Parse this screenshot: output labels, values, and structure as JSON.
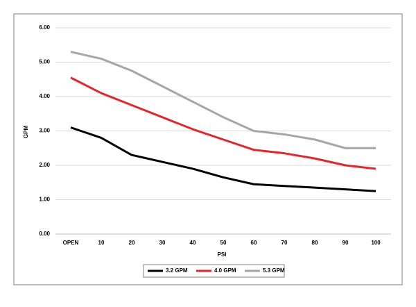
{
  "chart_data": {
    "type": "line",
    "x_label": "PSI",
    "y_label": "GPM",
    "categories": [
      "OPEN",
      "10",
      "20",
      "30",
      "40",
      "50",
      "60",
      "70",
      "80",
      "90",
      "100"
    ],
    "series": [
      {
        "name": "3.2 GPM",
        "color": "#000000",
        "values": [
          3.1,
          2.8,
          2.3,
          2.1,
          1.9,
          1.65,
          1.45,
          1.4,
          1.35,
          1.3,
          1.25
        ]
      },
      {
        "name": "4.0 GPM",
        "color": "#e3262b",
        "values": [
          4.55,
          4.1,
          3.75,
          3.4,
          3.05,
          2.75,
          2.45,
          2.35,
          2.2,
          2.0,
          1.9
        ]
      },
      {
        "name": "5.3 GPM",
        "color": "#a6a6a6",
        "values": [
          5.3,
          5.1,
          4.75,
          4.3,
          3.85,
          3.4,
          3.0,
          2.9,
          2.75,
          2.5,
          2.5
        ]
      }
    ],
    "ylim": [
      0,
      6
    ],
    "yticks": [
      {
        "value": 0,
        "label": "0.00"
      },
      {
        "value": 1,
        "label": "1.00"
      },
      {
        "value": 2,
        "label": "2.00"
      },
      {
        "value": 3,
        "label": "3.00"
      },
      {
        "value": 4,
        "label": "4.00"
      },
      {
        "value": 5,
        "label": "5.00"
      },
      {
        "value": 6,
        "label": "6.00"
      }
    ],
    "grid": true,
    "legend": "bottom"
  }
}
